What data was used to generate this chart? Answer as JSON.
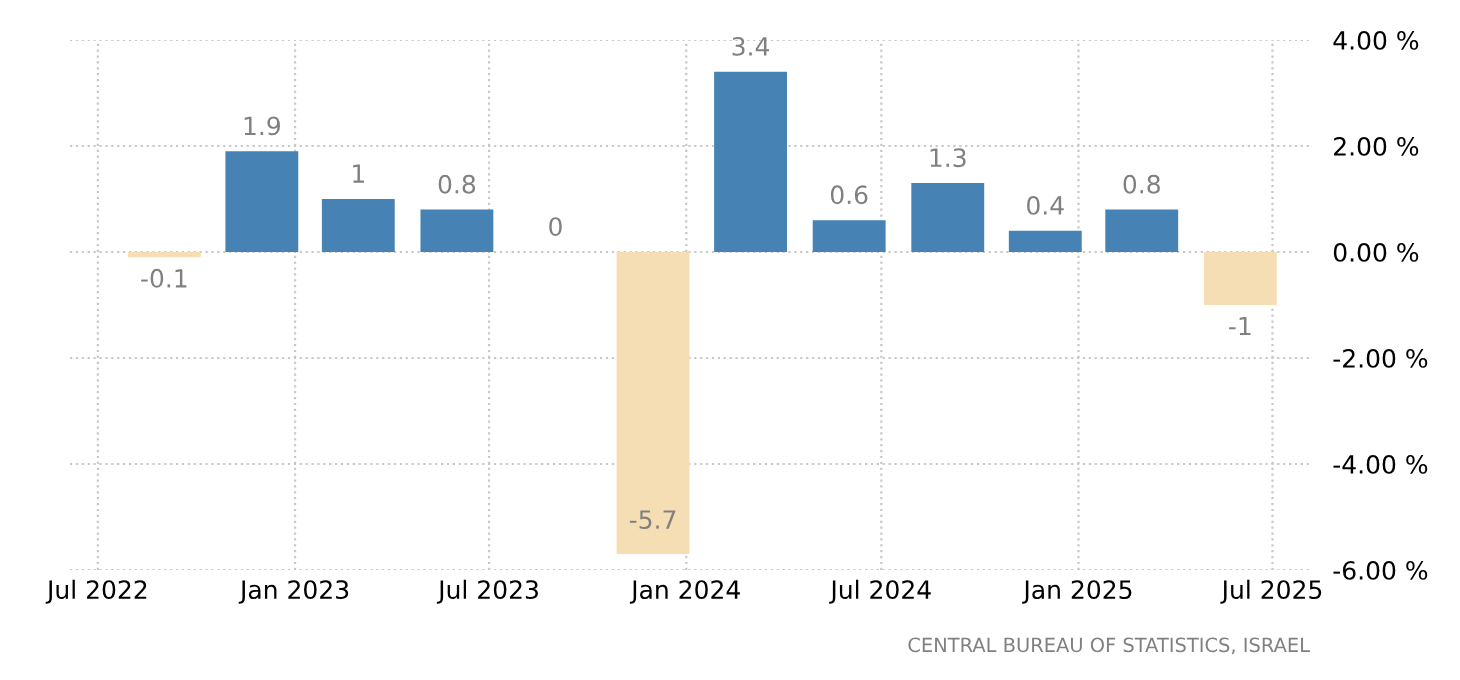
{
  "chart_data": {
    "type": "bar",
    "x": [
      "2022-09",
      "2022-12",
      "2023-03",
      "2023-06",
      "2023-09",
      "2023-12",
      "2024-03",
      "2024-06",
      "2024-09",
      "2024-12",
      "2025-03",
      "2025-06"
    ],
    "values": [
      -0.1,
      1.9,
      1,
      0.8,
      0,
      -5.7,
      3.4,
      0.6,
      1.3,
      0.4,
      0.8,
      -1
    ],
    "colors": [
      "#f5deb3",
      "#4682b4",
      "#4682b4",
      "#4682b4",
      "#4682b4",
      "#f5deb3",
      "#4682b4",
      "#4682b4",
      "#4682b4",
      "#4682b4",
      "#4682b4",
      "#f5deb3"
    ],
    "data_labels": true,
    "xlim": [
      "2022-06-05",
      "2025-08-05"
    ],
    "xticks": [
      {
        "value": "2022-07",
        "label": "Jul 2022"
      },
      {
        "value": "2023-01",
        "label": "Jan 2023"
      },
      {
        "value": "2023-07",
        "label": "Jul 2023"
      },
      {
        "value": "2024-01",
        "label": "Jan 2024"
      },
      {
        "value": "2024-07",
        "label": "Jul 2024"
      },
      {
        "value": "2025-01",
        "label": "Jan 2025"
      },
      {
        "value": "2025-07",
        "label": "Jul 2025"
      }
    ],
    "ylim": [
      -6,
      4
    ],
    "yticks": [
      {
        "value": 4,
        "label": "4.00 %"
      },
      {
        "value": 2,
        "label": "2.00 %"
      },
      {
        "value": 0,
        "label": "0.00 %"
      },
      {
        "value": -2,
        "label": "-2.00 %"
      },
      {
        "value": -4,
        "label": "-4.00 %"
      },
      {
        "value": -6,
        "label": "-6.00 %"
      }
    ],
    "grid": true,
    "annotations": [
      "CENTRAL BUREAU OF STATISTICS, ISRAEL"
    ]
  }
}
